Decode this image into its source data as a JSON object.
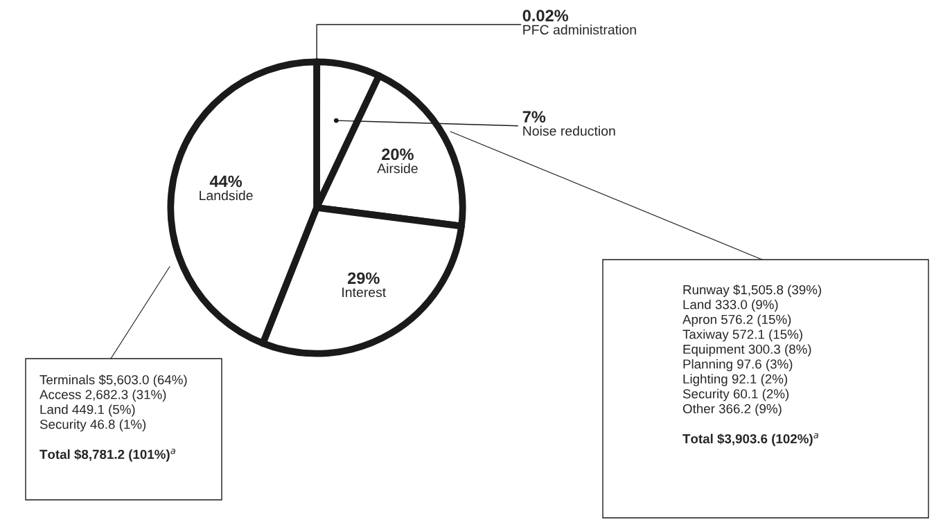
{
  "chart_data": {
    "type": "pie",
    "categories": [
      "PFC administration",
      "Noise reduction",
      "Airside",
      "Interest",
      "Landside"
    ],
    "values": [
      0.02,
      7,
      20,
      29,
      44
    ],
    "value_labels": [
      "0.02%",
      "7%",
      "20%",
      "29%",
      "44%"
    ],
    "colors": [
      "#ffffff",
      "#ffffff",
      "#ffffff",
      "#ffffff",
      "#ffffff"
    ],
    "annotations": [
      "Terminals $5,603.0 (64%)\nAccess 2,682.3 (31%)\nLand 449.1 (5%)\nSecurity 46.8 (1%)\n\nTotal $8,781.2 (101%)$^{a}$",
      "Runway $1,505.8 (39%)\nLand 333.0 (9%)\nApron 576.2 (15%)\nTaxiway 572.1 (15%)\nEquipment 300.3 (8%)\nPlanning 97.6 (3%)\nLighting 92.1 (2%)\nSecurity 60.1 (2%)\nOther 366.2 (9%)\n\nTotal $3,903.6 (102%)$^{a}$"
    ]
  }
}
